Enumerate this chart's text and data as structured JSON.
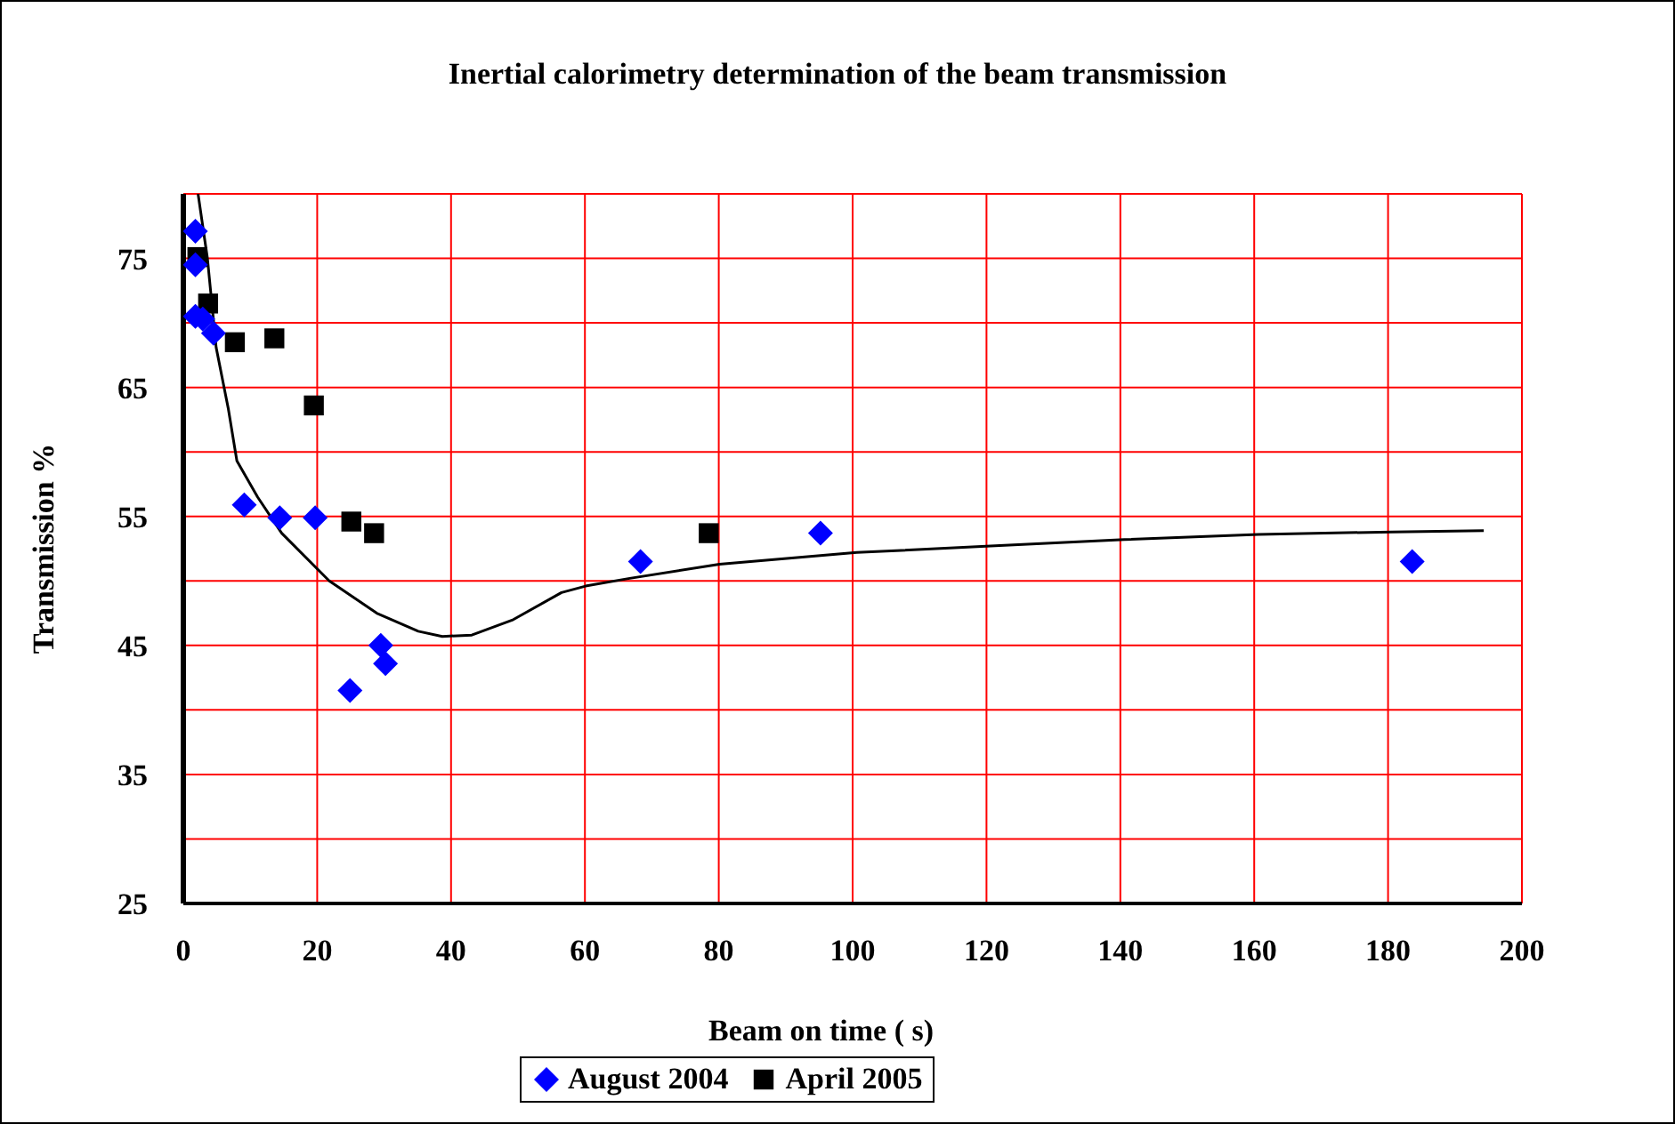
{
  "chart_data": {
    "type": "scatter",
    "title": "Inertial calorimetry determination of the beam transmission",
    "xlabel": "Beam on time ( s)",
    "ylabel": "Transmission %",
    "xlim": [
      0,
      200
    ],
    "xticks": [
      0,
      20,
      40,
      60,
      80,
      100,
      120,
      140,
      160,
      180,
      200
    ],
    "ylim": [
      25,
      80
    ],
    "yticks": [
      25,
      {
        "value": 30,
        "label": null
      },
      35,
      {
        "value": 40,
        "label": null
      },
      45,
      {
        "value": 50,
        "label": null
      },
      55,
      {
        "value": 60,
        "label": null
      },
      65,
      {
        "value": 70,
        "label": null
      },
      75,
      {
        "value": 80,
        "label": null
      }
    ],
    "grid": true,
    "legend": "bottom",
    "series": [
      {
        "name": "April 2005",
        "color": "#000000",
        "marker": "square",
        "x": [
          2.1,
          3.7,
          7.7,
          13.6,
          19.5,
          25.1,
          28.5,
          78.5
        ],
        "values": [
          75.1,
          71.5,
          68.5,
          68.8,
          63.6,
          54.6,
          53.7,
          53.7
        ]
      },
      {
        "name": "August 2004",
        "color": "#0000ff",
        "marker": "diamond",
        "x": [
          1.8,
          1.8,
          1.8,
          2.9,
          4.5,
          9.1,
          14.4,
          19.7,
          24.9,
          29.5,
          30.2,
          68.3,
          95.2,
          183.6
        ],
        "values": [
          77.1,
          74.5,
          70.5,
          70.3,
          69.2,
          55.9,
          54.9,
          54.9,
          41.5,
          45.0,
          43.6,
          51.5,
          53.7,
          51.5
        ]
      },
      {
        "type": "line",
        "color": "#000000",
        "marker": "none",
        "x": [
          2.2,
          3.6,
          4.9,
          6.7,
          8.0,
          11.1,
          14.7,
          21.8,
          28.9,
          35.1,
          38.7,
          43.1,
          49.3,
          56.5,
          60.1,
          66.7,
          80.1,
          100.6,
          120.6,
          140.6,
          160.6,
          180.6,
          194.3
        ],
        "values": [
          80,
          75.0,
          68.1,
          63.4,
          59.3,
          56.5,
          53.7,
          50.0,
          47.5,
          46.1,
          45.7,
          45.8,
          47.0,
          49.1,
          49.6,
          50.2,
          51.3,
          52.2,
          52.7,
          53.2,
          53.6,
          53.8,
          53.9
        ]
      }
    ]
  }
}
